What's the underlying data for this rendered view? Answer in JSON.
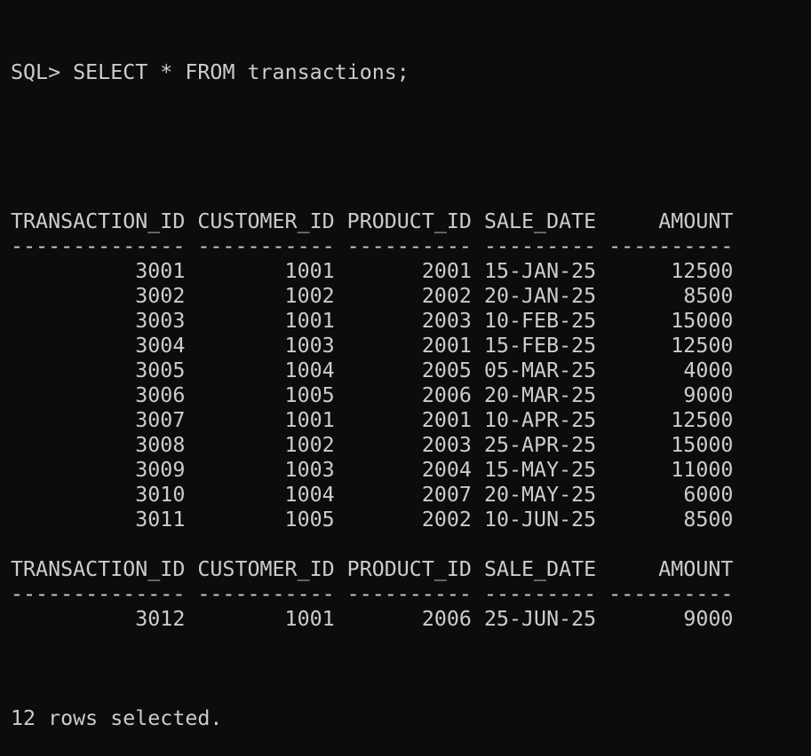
{
  "terminal": {
    "prompt": "SQL> SELECT * FROM transactions;",
    "columns": [
      "TRANSACTION_ID",
      "CUSTOMER_ID",
      "PRODUCT_ID",
      "SALE_DATE",
      "AMOUNT"
    ],
    "column_align": [
      "right",
      "right",
      "right",
      "left",
      "right"
    ],
    "separators": [
      "--------------",
      "-----------",
      "----------",
      "---------",
      "----------"
    ],
    "pages": [
      {
        "rows": [
          [
            "3001",
            "1001",
            "2001",
            "15-JAN-25",
            "12500"
          ],
          [
            "3002",
            "1002",
            "2002",
            "20-JAN-25",
            "8500"
          ],
          [
            "3003",
            "1001",
            "2003",
            "10-FEB-25",
            "15000"
          ],
          [
            "3004",
            "1003",
            "2001",
            "15-FEB-25",
            "12500"
          ],
          [
            "3005",
            "1004",
            "2005",
            "05-MAR-25",
            "4000"
          ],
          [
            "3006",
            "1005",
            "2006",
            "20-MAR-25",
            "9000"
          ],
          [
            "3007",
            "1001",
            "2001",
            "10-APR-25",
            "12500"
          ],
          [
            "3008",
            "1002",
            "2003",
            "25-APR-25",
            "15000"
          ],
          [
            "3009",
            "1003",
            "2004",
            "15-MAY-25",
            "11000"
          ],
          [
            "3010",
            "1004",
            "2007",
            "20-MAY-25",
            "6000"
          ],
          [
            "3011",
            "1005",
            "2002",
            "10-JUN-25",
            "8500"
          ]
        ]
      },
      {
        "rows": [
          [
            "3012",
            "1001",
            "2006",
            "25-JUN-25",
            "9000"
          ]
        ]
      }
    ],
    "footer": "12 rows selected."
  }
}
